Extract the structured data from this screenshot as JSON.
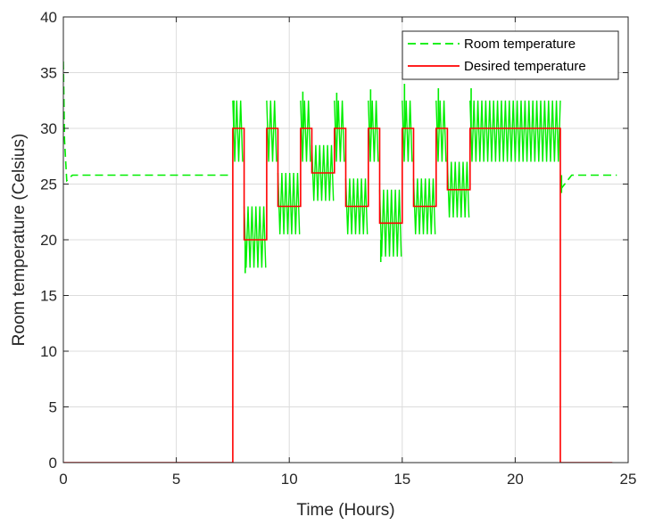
{
  "chart_data": {
    "type": "line",
    "title": "",
    "xlabel": "Time (Hours)",
    "ylabel": "Room temperature (Celsius)",
    "xlim": [
      0,
      25
    ],
    "ylim": [
      0,
      40
    ],
    "xticks": [
      0,
      5,
      10,
      15,
      20,
      25
    ],
    "yticks": [
      0,
      5,
      10,
      15,
      20,
      25,
      30,
      35,
      40
    ],
    "xtick_labels": [
      "0",
      "5",
      "10",
      "15",
      "20",
      "25"
    ],
    "ytick_labels": [
      "0",
      "5",
      "10",
      "15",
      "20",
      "25",
      "30",
      "35",
      "40"
    ],
    "grid": true,
    "legend_position": "top-right",
    "series": [
      {
        "name": "Room temperature",
        "color": "#00ee00",
        "style": "dashed",
        "approx_points": {
          "x": [
            0,
            0.05,
            0.15,
            0.4,
            7.5,
            7.5,
            8.0,
            8.0,
            9.0,
            9.0,
            9.5,
            9.5,
            10.5,
            10.5,
            11.0,
            11.0,
            12.0,
            12.0,
            12.5,
            12.5,
            13.5,
            13.5,
            14.0,
            14.0,
            15.0,
            15.0,
            15.5,
            15.5,
            16.5,
            16.5,
            17.0,
            17.0,
            18.0,
            18.0,
            22.0,
            22.0,
            22.5,
            24.5
          ],
          "y": [
            36,
            29,
            25.3,
            25.8,
            25.8,
            30,
            30,
            20,
            20,
            30,
            30,
            23,
            23,
            30,
            30,
            26,
            26,
            30,
            30,
            23,
            23,
            30,
            30,
            21.5,
            21.5,
            30,
            30,
            23,
            23,
            30,
            30,
            24.5,
            24.5,
            30,
            30,
            24.5,
            25.8,
            25.8
          ]
        },
        "oscillation_bands": [
          {
            "x_start": 7.5,
            "x_end": 8.0,
            "low": 27.0,
            "high": 32.5
          },
          {
            "x_start": 8.0,
            "x_end": 9.0,
            "low": 17.5,
            "high": 23.0
          },
          {
            "x_start": 9.0,
            "x_end": 9.5,
            "low": 27.0,
            "high": 32.5
          },
          {
            "x_start": 9.5,
            "x_end": 10.5,
            "low": 20.5,
            "high": 26.0
          },
          {
            "x_start": 10.5,
            "x_end": 11.0,
            "low": 27.0,
            "high": 32.5
          },
          {
            "x_start": 11.0,
            "x_end": 12.0,
            "low": 23.5,
            "high": 28.5
          },
          {
            "x_start": 12.0,
            "x_end": 12.5,
            "low": 27.0,
            "high": 32.5
          },
          {
            "x_start": 12.5,
            "x_end": 13.5,
            "low": 20.5,
            "high": 25.5
          },
          {
            "x_start": 13.5,
            "x_end": 14.0,
            "low": 27.0,
            "high": 32.5
          },
          {
            "x_start": 14.0,
            "x_end": 15.0,
            "low": 18.5,
            "high": 24.5
          },
          {
            "x_start": 15.0,
            "x_end": 15.5,
            "low": 27.0,
            "high": 32.5
          },
          {
            "x_start": 15.5,
            "x_end": 16.5,
            "low": 20.5,
            "high": 25.5
          },
          {
            "x_start": 16.5,
            "x_end": 17.0,
            "low": 27.0,
            "high": 32.5
          },
          {
            "x_start": 17.0,
            "x_end": 18.0,
            "low": 22.0,
            "high": 27.0
          },
          {
            "x_start": 18.0,
            "x_end": 22.0,
            "low": 27.0,
            "high": 32.5
          }
        ],
        "spikes": [
          {
            "x": 7.55,
            "y": 32.5
          },
          {
            "x": 10.6,
            "y": 33.3
          },
          {
            "x": 12.1,
            "y": 33.2
          },
          {
            "x": 13.6,
            "y": 33.5
          },
          {
            "x": 15.1,
            "y": 34.0
          },
          {
            "x": 16.6,
            "y": 33.6
          },
          {
            "x": 18.05,
            "y": 33.6
          },
          {
            "x": 8.05,
            "y": 17.0
          },
          {
            "x": 14.05,
            "y": 18.0
          },
          {
            "x": 22.05,
            "y": 24.2
          }
        ]
      },
      {
        "name": "Desired temperature",
        "color": "#ff0000",
        "style": "solid",
        "x": [
          0,
          7.5,
          7.5,
          8.0,
          8.0,
          9.0,
          9.0,
          9.5,
          9.5,
          10.5,
          10.5,
          11.0,
          11.0,
          12.0,
          12.0,
          12.5,
          12.5,
          13.5,
          13.5,
          14.0,
          14.0,
          15.0,
          15.0,
          15.5,
          15.5,
          16.5,
          16.5,
          17.0,
          17.0,
          18.0,
          18.0,
          22.0,
          22.0,
          24.3
        ],
        "y": [
          0,
          0,
          30,
          30,
          20,
          20,
          30,
          30,
          23,
          23,
          30,
          30,
          26,
          26,
          30,
          30,
          23,
          23,
          30,
          30,
          21.5,
          21.5,
          30,
          30,
          23,
          23,
          30,
          30,
          24.5,
          24.5,
          30,
          30,
          0,
          0
        ]
      }
    ]
  }
}
